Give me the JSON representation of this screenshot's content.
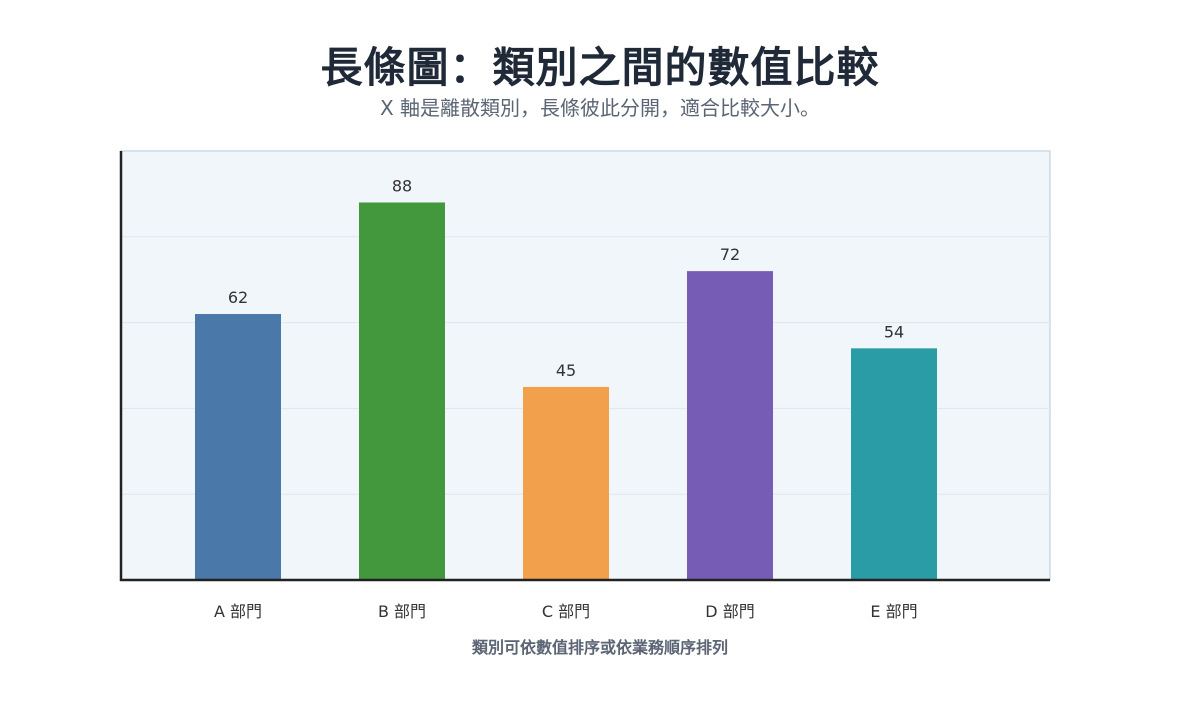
{
  "chart_data": {
    "type": "bar",
    "title": "長條圖：類別之間的數值比較",
    "subtitle": "X 軸是離散類別，長條彼此分開，適合比較大小。",
    "xlabel": "類別可依數值排序或依業務順序排列",
    "ylabel": "",
    "categories": [
      "A 部門",
      "B 部門",
      "C 部門",
      "D 部門",
      "E 部門"
    ],
    "values": [
      62,
      88,
      45,
      72,
      54
    ],
    "colors": [
      "#4a78a8",
      "#43973d",
      "#f2a04b",
      "#775cb5",
      "#2a9ca5"
    ],
    "ylim": [
      0,
      100
    ],
    "grid": true,
    "plot_background": "#f1f6fa",
    "grid_color": "#dfe6ee",
    "axis_color": "#222222"
  }
}
